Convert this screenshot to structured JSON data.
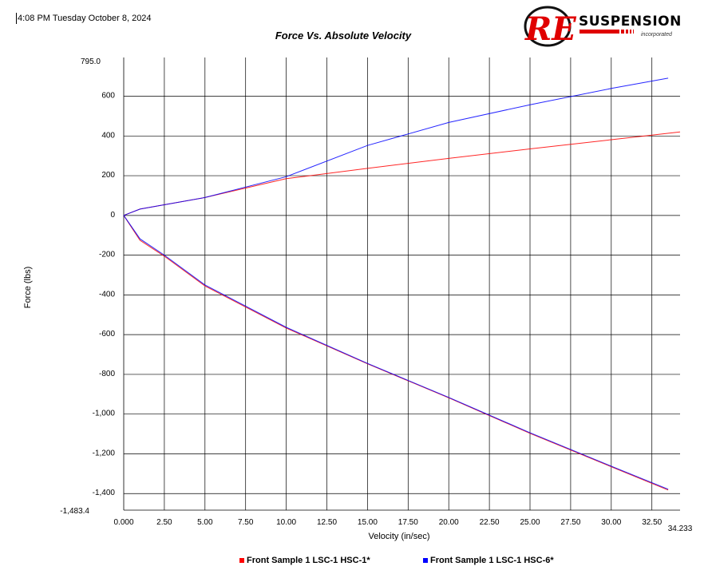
{
  "header": {
    "timestamp": "4:08 PM Tuesday October 8, 2024",
    "logo_mark": "RE",
    "logo_word": "SUSPENSION",
    "logo_sub": "incorporated"
  },
  "chart_data": {
    "type": "line",
    "title": "Force Vs. Absolute Velocity",
    "xlabel": "Velocity (in/sec)",
    "ylabel": "Force (lbs)",
    "xlim": [
      0,
      34.233
    ],
    "ylim": [
      -1483.4,
      795.0
    ],
    "x_ticks": [
      {
        "value": 0,
        "label": "0.000"
      },
      {
        "value": 2.5,
        "label": "2.50"
      },
      {
        "value": 5,
        "label": "5.00"
      },
      {
        "value": 7.5,
        "label": "7.50"
      },
      {
        "value": 10,
        "label": "10.00"
      },
      {
        "value": 12.5,
        "label": "12.50"
      },
      {
        "value": 15,
        "label": "15.00"
      },
      {
        "value": 17.5,
        "label": "17.50"
      },
      {
        "value": 20,
        "label": "20.00"
      },
      {
        "value": 22.5,
        "label": "22.50"
      },
      {
        "value": 25,
        "label": "25.00"
      },
      {
        "value": 27.5,
        "label": "27.50"
      },
      {
        "value": 30,
        "label": "30.00"
      },
      {
        "value": 32.5,
        "label": "32.50"
      },
      {
        "value": 34.233,
        "label": "34.233"
      }
    ],
    "y_ticks": [
      {
        "value": 795.0,
        "label": "795.0"
      },
      {
        "value": 600,
        "label": "600"
      },
      {
        "value": 400,
        "label": "400"
      },
      {
        "value": 200,
        "label": "200"
      },
      {
        "value": 0,
        "label": "0"
      },
      {
        "value": -200,
        "label": "-200"
      },
      {
        "value": -400,
        "label": "-400"
      },
      {
        "value": -600,
        "label": "-600"
      },
      {
        "value": -800,
        "label": "-800"
      },
      {
        "value": -1000,
        "label": "-1,000"
      },
      {
        "value": -1200,
        "label": "-1,200"
      },
      {
        "value": -1400,
        "label": "-1,400"
      },
      {
        "value": -1483.4,
        "label": "-1,483.4"
      }
    ],
    "grid": true,
    "legend_position": "bottom",
    "series": [
      {
        "name": "Front Sample 1 LSC-1 HSC-1*",
        "color": "#ff0000",
        "rebound": [
          [
            0,
            0
          ],
          [
            1,
            32
          ],
          [
            5,
            90
          ],
          [
            10,
            185
          ],
          [
            15,
            237
          ],
          [
            20,
            287
          ],
          [
            25,
            335
          ],
          [
            30,
            381
          ],
          [
            34.233,
            420
          ]
        ],
        "compression": [
          [
            0,
            0
          ],
          [
            1,
            -125
          ],
          [
            2.5,
            -205
          ],
          [
            5,
            -355
          ],
          [
            10,
            -567
          ],
          [
            15,
            -747
          ],
          [
            20,
            -918
          ],
          [
            25,
            -1097
          ],
          [
            30,
            -1265
          ],
          [
            33.5,
            -1382
          ]
        ]
      },
      {
        "name": "Front Sample 1 LSC-1 HSC-6*",
        "color": "#0000ff",
        "rebound": [
          [
            0,
            0
          ],
          [
            1,
            32
          ],
          [
            5,
            90
          ],
          [
            10,
            195
          ],
          [
            15,
            352
          ],
          [
            20,
            468
          ],
          [
            25,
            557
          ],
          [
            30,
            639
          ],
          [
            33.5,
            691
          ]
        ],
        "compression": [
          [
            0,
            0
          ],
          [
            1,
            -118
          ],
          [
            2.5,
            -200
          ],
          [
            5,
            -350
          ],
          [
            10,
            -563
          ],
          [
            15,
            -745
          ],
          [
            20,
            -916
          ],
          [
            25,
            -1094
          ],
          [
            30,
            -1262
          ],
          [
            33.5,
            -1378
          ]
        ]
      }
    ]
  }
}
